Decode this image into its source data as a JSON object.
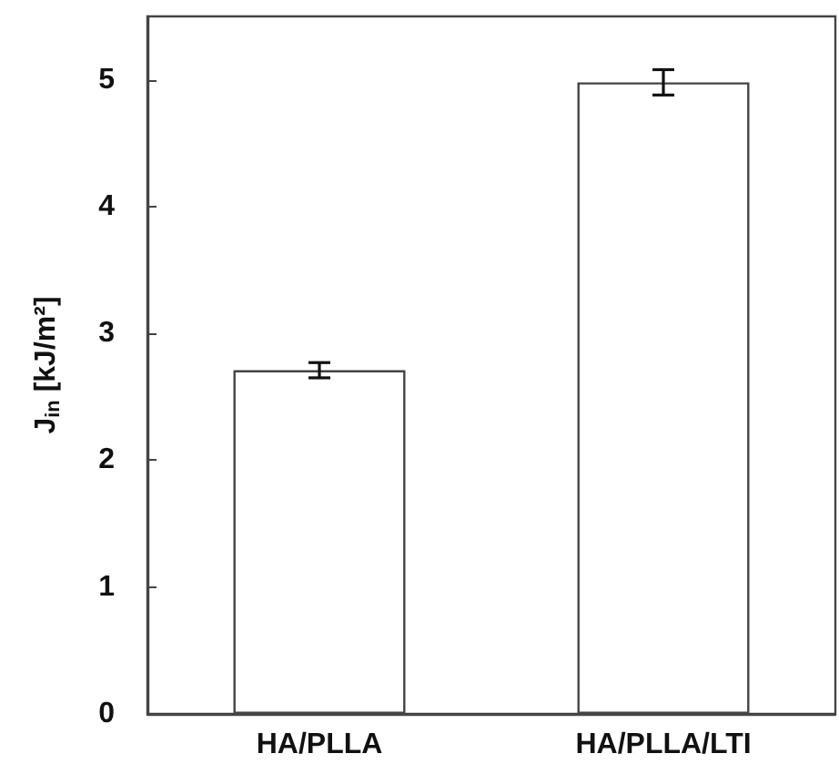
{
  "chart_data": {
    "type": "bar",
    "ylabel": "J$_{in}$ [kJ/m²]",
    "categories": [
      "HA/PLLA",
      "HA/PLLA/LTI"
    ],
    "values": [
      2.71,
      4.98
    ],
    "errors": [
      0.06,
      0.1
    ],
    "color": "#ffffff",
    "ylim": [
      0,
      5.5
    ],
    "yticks": [
      0,
      1,
      2,
      3,
      4,
      5
    ],
    "grid": false
  }
}
